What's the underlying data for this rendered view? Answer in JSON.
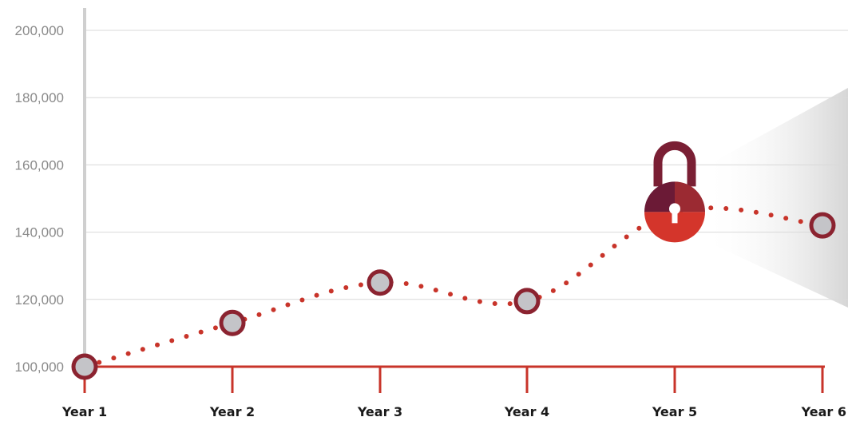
{
  "chart_data": {
    "type": "line",
    "categories": [
      "Year 1",
      "Year 2",
      "Year 3",
      "Year 4",
      "Year 5",
      "Year 6"
    ],
    "series": [
      {
        "values": [
          100000,
          113000,
          125000,
          119500,
          146000,
          142000
        ]
      }
    ],
    "ylim": [
      100000,
      200000
    ],
    "y_ticks": [
      "100,000",
      "120,000",
      "140,000",
      "160,000",
      "180,000",
      "200,000"
    ],
    "grid": true,
    "line_style": "dotted",
    "lock_marker_at": "Year 5",
    "colors": {
      "line": "#c8342a",
      "marker_ring": "#8b2330",
      "marker_fill": "#c4c4c8",
      "axis": "#c8342a",
      "grid": "#d9d9d9",
      "lock_dark": "#6b1a36",
      "lock_mid": "#9b2a32",
      "lock_light": "#d4352b"
    }
  }
}
